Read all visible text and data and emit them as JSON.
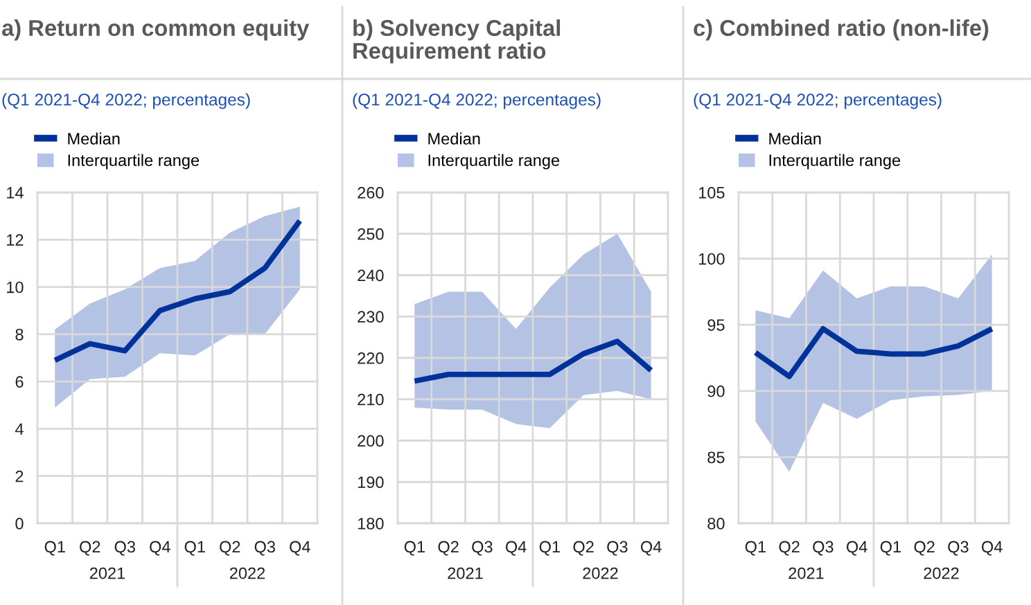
{
  "chart_data": [
    {
      "type": "line",
      "title": "a) Return on common equity",
      "subtitle": "(Q1 2021-Q4 2022; percentages)",
      "categories": [
        "Q1",
        "Q2",
        "Q3",
        "Q4",
        "Q1",
        "Q2",
        "Q3",
        "Q4"
      ],
      "annotations": [
        "2021",
        "2022"
      ],
      "series": [
        {
          "name": "Median",
          "type": "line",
          "color": "#003299",
          "values": [
            6.9,
            7.6,
            7.3,
            9.0,
            9.5,
            9.8,
            10.8,
            12.8
          ]
        },
        {
          "name": "Interquartile range",
          "type": "area",
          "color": "#b4c2e4",
          "values": [
            null,
            null,
            null,
            null,
            null,
            null,
            null,
            null
          ],
          "lower": [
            4.9,
            6.1,
            6.2,
            7.2,
            7.1,
            8.0,
            8.0,
            9.9
          ],
          "upper": [
            8.2,
            9.3,
            9.9,
            10.8,
            11.1,
            12.3,
            13.0,
            13.4
          ]
        }
      ],
      "ylim": [
        0,
        14
      ],
      "yticks": [
        0,
        2,
        4,
        6,
        8,
        10,
        12,
        14
      ],
      "grid": true,
      "legend": "top left"
    },
    {
      "type": "line",
      "title": "b) Solvency Capital\nRequirement ratio",
      "subtitle": "(Q1 2021-Q4 2022; percentages)",
      "categories": [
        "Q1",
        "Q2",
        "Q3",
        "Q4",
        "Q1",
        "Q2",
        "Q3",
        "Q4"
      ],
      "annotations": [
        "2021",
        "2022"
      ],
      "series": [
        {
          "name": "Median",
          "type": "line",
          "color": "#003299",
          "values": [
            214.4,
            216,
            216,
            216,
            216,
            221,
            224,
            217
          ]
        },
        {
          "name": "Interquartile range",
          "type": "area",
          "color": "#b4c2e4",
          "values": [
            null,
            null,
            null,
            null,
            null,
            null,
            null,
            null
          ],
          "lower": [
            208,
            207.5,
            207.5,
            204,
            203,
            211,
            212,
            210
          ],
          "upper": [
            233,
            236,
            236,
            227,
            237,
            245,
            250,
            236
          ]
        }
      ],
      "ylim": [
        180,
        260
      ],
      "yticks": [
        180,
        190,
        200,
        210,
        220,
        230,
        240,
        250,
        260
      ],
      "grid": true,
      "legend": "top left"
    },
    {
      "type": "line",
      "title": "c) Combined ratio (non-life)",
      "subtitle": "(Q1 2021-Q4 2022; percentages)",
      "categories": [
        "Q1",
        "Q2",
        "Q3",
        "Q4",
        "Q1",
        "Q2",
        "Q3",
        "Q4"
      ],
      "annotations": [
        "2021",
        "2022"
      ],
      "series": [
        {
          "name": "Median",
          "type": "line",
          "color": "#003299",
          "values": [
            92.9,
            91.1,
            94.7,
            93.0,
            92.8,
            92.8,
            93.4,
            94.7
          ]
        },
        {
          "name": "Interquartile range",
          "type": "area",
          "color": "#b4c2e4",
          "values": [
            null,
            null,
            null,
            null,
            null,
            null,
            null,
            null
          ],
          "lower": [
            87.7,
            83.9,
            89.1,
            87.9,
            89.3,
            89.6,
            89.7,
            90.0
          ],
          "upper": [
            96.1,
            95.5,
            99.1,
            97.0,
            97.9,
            97.9,
            97.0,
            100.3
          ]
        }
      ],
      "ylim": [
        80,
        105
      ],
      "yticks": [
        80,
        85,
        90,
        95,
        100,
        105
      ],
      "grid": true,
      "legend": "top left"
    }
  ]
}
